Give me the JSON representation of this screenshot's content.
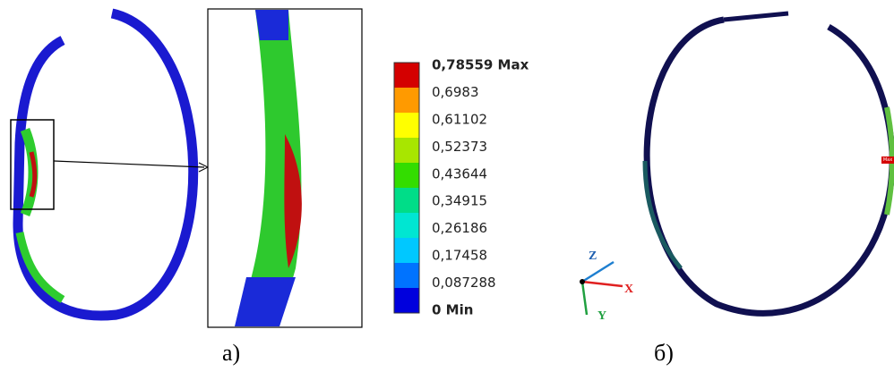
{
  "legend": {
    "labels": [
      "0,78559 Max",
      "0,6983",
      "0,61102",
      "0,52373",
      "0,43644",
      "0,34915",
      "0,26186",
      "0,17458",
      "0,087288",
      "0 Min"
    ],
    "colors": [
      "#d40000",
      "#ff9a00",
      "#ffff00",
      "#a8e600",
      "#33dd00",
      "#00dd88",
      "#00e6d2",
      "#00c8ff",
      "#0073ff",
      "#0000dd"
    ]
  },
  "captions": [
    "а)",
    "б)"
  ],
  "triad": {
    "z": "Z",
    "x": "X",
    "y": "Y"
  },
  "marker": "Max"
}
